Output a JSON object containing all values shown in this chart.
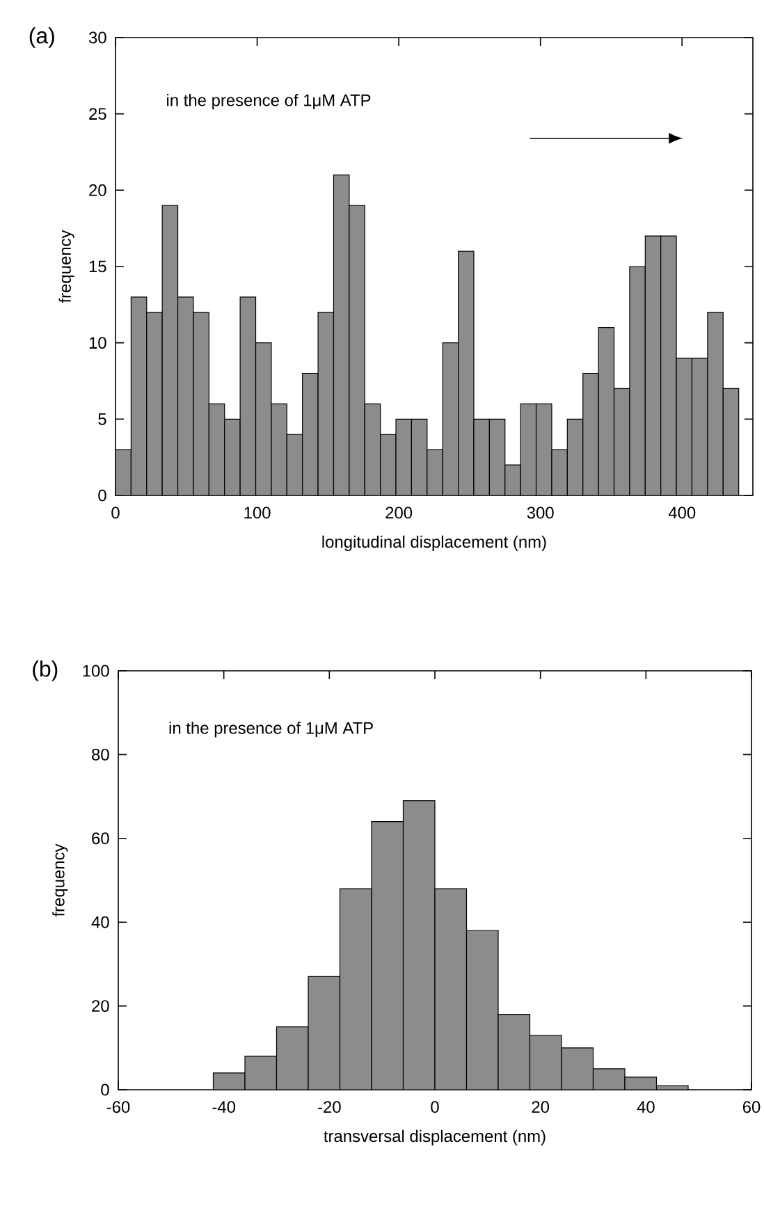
{
  "chart_data": [
    {
      "type": "histogram",
      "title": "(a)",
      "xlabel": "longitudinal displacement (nm)",
      "ylabel": "frequency",
      "annotations": [
        "in the presence of 1μM ATP"
      ],
      "color": "#8c8c8c",
      "bins": [
        0,
        11,
        22,
        33,
        44,
        55,
        66,
        77,
        88,
        99,
        110,
        121,
        132,
        143,
        154,
        165,
        176,
        187,
        198,
        209,
        220,
        231,
        242,
        253,
        264,
        275,
        286,
        297,
        308,
        319,
        330,
        341,
        352,
        363,
        374,
        385,
        396,
        407,
        418,
        429,
        440
      ],
      "values": [
        3,
        13,
        12,
        19,
        13,
        12,
        6,
        5,
        13,
        10,
        6,
        4,
        8,
        12,
        21,
        19,
        6,
        4,
        5,
        5,
        3,
        10,
        16,
        5,
        5,
        2,
        6,
        6,
        3,
        5,
        8,
        11,
        7,
        15,
        17,
        17,
        9,
        9,
        12,
        7
      ],
      "xlim": [
        0,
        450
      ],
      "ylim": [
        0,
        30
      ],
      "xticks": [
        0,
        100,
        200,
        300,
        400
      ],
      "yticks": [
        0,
        5,
        10,
        15,
        20,
        25,
        30
      ]
    },
    {
      "type": "histogram",
      "title": "(b)",
      "xlabel": "transversal displacement (nm)",
      "ylabel": "frequency",
      "annotations": [
        "in the presence of 1μM ATP"
      ],
      "color": "#8c8c8c",
      "bins": [
        -42,
        -36,
        -30,
        -24,
        -18,
        -12,
        -6,
        0,
        6,
        12,
        18,
        24,
        30,
        36,
        42,
        48
      ],
      "values": [
        4,
        8,
        15,
        27,
        48,
        64,
        69,
        48,
        38,
        18,
        13,
        10,
        5,
        3,
        1
      ],
      "xlim": [
        -60,
        60
      ],
      "ylim": [
        0,
        100
      ],
      "xticks": [
        -60,
        -40,
        -20,
        0,
        20,
        40,
        60
      ],
      "yticks": [
        0,
        20,
        40,
        60,
        80,
        100
      ]
    }
  ]
}
